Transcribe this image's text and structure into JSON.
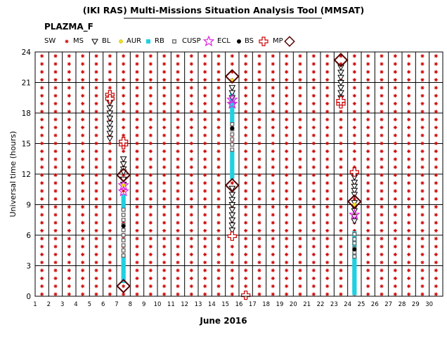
{
  "chart_data": {
    "type": "scatter",
    "title": "(IKI RAS) Multi-Missions Situation Analysis Tool (MMSAT)",
    "subtitle": "PLAZMA_F",
    "xlabel": "June 2016",
    "ylabel": "Universal time (hours)",
    "xlim": [
      1,
      31
    ],
    "ylim": [
      0,
      24
    ],
    "x_ticks": [
      "1",
      "2",
      "3",
      "4",
      "5",
      "6",
      "7",
      "8",
      "9",
      "10",
      "11",
      "12",
      "13",
      "14",
      "15",
      "16",
      "17",
      "18",
      "19",
      "20",
      "21",
      "22",
      "23",
      "24",
      "25",
      "26",
      "27",
      "28",
      "29",
      "30"
    ],
    "y_ticks": [
      "0",
      "3",
      "6",
      "9",
      "12",
      "15",
      "18",
      "21",
      "24"
    ],
    "grid": true,
    "legend_position": "top",
    "legend": [
      {
        "key": "SW",
        "label": "SW",
        "marker": "none"
      },
      {
        "key": "MS",
        "label": "MS",
        "marker": "asterisk"
      },
      {
        "key": "BL",
        "label": "BL",
        "marker": "triangle-down"
      },
      {
        "key": "AUR",
        "label": "AUR",
        "marker": "dot"
      },
      {
        "key": "RB",
        "label": "RB",
        "marker": "square"
      },
      {
        "key": "CUSP",
        "label": "CUSP",
        "marker": "square-open"
      },
      {
        "key": "ECL",
        "label": "ECL",
        "marker": "star"
      },
      {
        "key": "BS",
        "label": "BS",
        "marker": "dot"
      },
      {
        "key": "MP",
        "label": "MP",
        "marker": "cross"
      },
      {
        "key": "NONE",
        "label": "",
        "marker": "diamond"
      }
    ],
    "series": [
      {
        "name": "MS",
        "x_range": [
          1.5,
          30.5
        ],
        "y_range": [
          0.2,
          23.8
        ],
        "note": "asterisk on every column every ~0.75 h"
      },
      {
        "name": "BL",
        "points": [
          [
            7.5,
            13.5
          ],
          [
            7.5,
            13.0
          ],
          [
            7.5,
            12.5
          ],
          [
            7.5,
            12.2
          ],
          [
            7.5,
            11.5
          ],
          [
            7.5,
            11.0
          ],
          [
            15.5,
            20.5
          ],
          [
            15.5,
            20.0
          ],
          [
            15.5,
            19.5
          ],
          [
            15.5,
            10.6
          ],
          [
            15.5,
            10.0
          ],
          [
            15.5,
            9.5
          ],
          [
            15.5,
            9.0
          ],
          [
            15.5,
            8.5
          ],
          [
            15.5,
            8.0
          ],
          [
            15.5,
            7.5
          ],
          [
            15.5,
            7.0
          ],
          [
            15.5,
            6.5
          ],
          [
            6.5,
            19.0
          ],
          [
            6.5,
            18.5
          ],
          [
            6.5,
            18.0
          ],
          [
            6.5,
            17.5
          ],
          [
            6.5,
            17.0
          ],
          [
            6.5,
            16.5
          ],
          [
            6.5,
            16.0
          ],
          [
            6.5,
            15.5
          ],
          [
            23.5,
            22.5
          ],
          [
            23.5,
            22.0
          ],
          [
            23.5,
            21.5
          ],
          [
            23.5,
            21.0
          ],
          [
            23.5,
            20.5
          ],
          [
            23.5,
            20.0
          ],
          [
            23.5,
            19.5
          ],
          [
            23.5,
            19.0
          ],
          [
            24.5,
            11.7
          ],
          [
            24.5,
            11.2
          ],
          [
            24.5,
            10.8
          ],
          [
            24.5,
            10.4
          ],
          [
            24.5,
            10.0
          ],
          [
            24.5,
            9.2
          ],
          [
            24.5,
            8.7
          ],
          [
            24.5,
            8.4
          ],
          [
            24.5,
            7.8
          ],
          [
            24.5,
            7.4
          ]
        ]
      },
      {
        "name": "AUR",
        "points": [
          [
            7.5,
            10.9
          ],
          [
            15.5,
            21.2
          ],
          [
            24.5,
            9.0
          ]
        ]
      },
      {
        "name": "RB",
        "segments": [
          [
            7.5,
            1.5,
            3.9
          ],
          [
            7.5,
            8.6,
            9.8
          ],
          [
            15.5,
            11.7,
            14.2
          ],
          [
            15.5,
            17.0,
            20.0
          ],
          [
            24.5,
            0.3,
            4.2
          ],
          [
            24.5,
            5.0,
            6.3
          ]
        ]
      },
      {
        "name": "CUSP",
        "points": [
          [
            7.5,
            4.0
          ],
          [
            7.5,
            4.5
          ],
          [
            7.5,
            5.0
          ],
          [
            7.5,
            5.5
          ],
          [
            7.5,
            6.0
          ],
          [
            7.5,
            6.5
          ],
          [
            7.5,
            7.0
          ],
          [
            7.5,
            7.5
          ],
          [
            7.5,
            8.0
          ],
          [
            7.5,
            8.5
          ],
          [
            15.5,
            14.4
          ],
          [
            15.5,
            14.9
          ],
          [
            15.5,
            15.4
          ],
          [
            15.5,
            15.9
          ],
          [
            15.5,
            16.4
          ],
          [
            15.5,
            16.9
          ],
          [
            24.5,
            4.3
          ],
          [
            24.5,
            3.9
          ],
          [
            24.5,
            4.7
          ],
          [
            24.5,
            5.2
          ],
          [
            24.5,
            5.6
          ],
          [
            24.5,
            6.1
          ]
        ]
      },
      {
        "name": "ECL",
        "points": [
          [
            7.5,
            10.9
          ],
          [
            7.5,
            10.3
          ],
          [
            15.5,
            19.3
          ],
          [
            15.5,
            18.9
          ],
          [
            24.5,
            8.0
          ]
        ]
      },
      {
        "name": "BS",
        "points": [
          [
            7.5,
            6.9
          ],
          [
            15.5,
            16.5
          ],
          [
            24.5,
            4.6
          ]
        ]
      },
      {
        "name": "MP",
        "points": [
          [
            6.5,
            19.8
          ],
          [
            6.5,
            19.4
          ],
          [
            7.5,
            14.9
          ],
          [
            7.5,
            15.2
          ],
          [
            15.5,
            5.9
          ],
          [
            16.5,
            0.1
          ],
          [
            23.5,
            18.9
          ],
          [
            23.5,
            19.2
          ],
          [
            24.5,
            12.2
          ]
        ]
      },
      {
        "name": "",
        "marker": "diamond",
        "points": [
          [
            7.5,
            1.0
          ],
          [
            7.5,
            11.9
          ],
          [
            15.5,
            10.9
          ],
          [
            15.5,
            21.6
          ],
          [
            23.5,
            23.2
          ],
          [
            24.5,
            9.3
          ]
        ]
      }
    ]
  }
}
